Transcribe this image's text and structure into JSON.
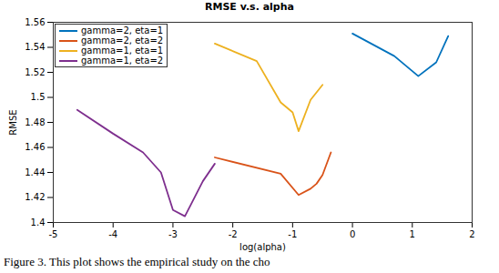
{
  "chart_data": {
    "type": "line",
    "title": "RMSE v.s. alpha",
    "x_label": "log(alpha)",
    "y_label": "RMSE",
    "caption": "Figure 3. This plot shows the empirical study on the cho",
    "xlim": [
      -5,
      2
    ],
    "xticks": [
      -5,
      -4,
      -3,
      -2,
      -1,
      0,
      1,
      2
    ],
    "ylim": [
      1.4,
      1.56
    ],
    "yticks": [
      1.4,
      1.42,
      1.44,
      1.46,
      1.48,
      1.5,
      1.52,
      1.54,
      1.56
    ],
    "grid": false,
    "legend": "upper left",
    "series": [
      {
        "name": "gamma=2, eta=1",
        "color": "#0072BD",
        "line_style": "solid",
        "x": [
          0,
          0.7,
          1.0,
          1.1,
          1.4,
          1.6
        ],
        "values": [
          1.551,
          1.533,
          1.521,
          1.517,
          1.528,
          1.549
        ]
      },
      {
        "name": "gamma=2, eta=2",
        "color": "#D95319",
        "line_style": "solid",
        "x": [
          -2.3,
          -1.2,
          -0.9,
          -0.7,
          -0.6,
          -0.5,
          -0.36
        ],
        "values": [
          1.452,
          1.439,
          1.422,
          1.427,
          1.431,
          1.438,
          1.456
        ]
      },
      {
        "name": "gamma=1, eta=1",
        "color": "#EDB120",
        "line_style": "solid",
        "x": [
          -2.3,
          -1.6,
          -1.2,
          -1.1,
          -1.0,
          -0.9,
          -0.7,
          -0.5
        ],
        "values": [
          1.543,
          1.529,
          1.496,
          1.492,
          1.488,
          1.473,
          1.498,
          1.51
        ]
      },
      {
        "name": "gamma=1, eta=2",
        "color": "#7E2F8E",
        "line_style": "solid",
        "x": [
          -4.6,
          -4.0,
          -3.5,
          -3.2,
          -3.0,
          -2.8,
          -2.5,
          -2.3
        ],
        "values": [
          1.49,
          1.471,
          1.456,
          1.44,
          1.41,
          1.405,
          1.433,
          1.447
        ]
      }
    ]
  }
}
